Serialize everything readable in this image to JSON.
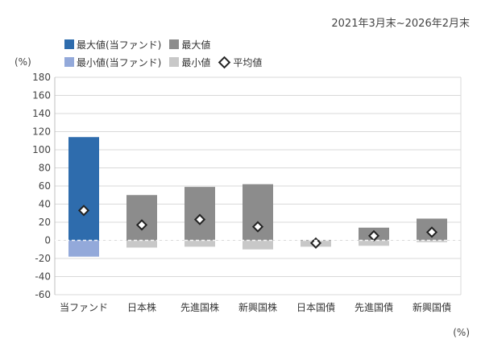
{
  "header": {
    "period": "2021年3月末~2026年2月末"
  },
  "legend": {
    "items": [
      {
        "label": "最大値(当ファンド)",
        "color": "#2e6cad",
        "marker": "square"
      },
      {
        "label": "最大値",
        "color": "#8c8c8c",
        "marker": "square"
      },
      {
        "label": "最小値(当ファンド)",
        "color": "#93a9da",
        "marker": "square"
      },
      {
        "label": "最小値",
        "color": "#c8c8c8",
        "marker": "square"
      },
      {
        "label": "平均値",
        "color": "#222222",
        "marker": "diamond-outline"
      }
    ]
  },
  "chart_data": {
    "type": "bar",
    "subtype": "floating range with average marker",
    "unit_left": "(%)",
    "unit_bottom_right": "(%)",
    "categories": [
      "当ファンド",
      "日本株",
      "先進国株",
      "新興国株",
      "日本国債",
      "先進国債",
      "新興国債"
    ],
    "series": [
      {
        "name": "最大値",
        "values": [
          114,
          50,
          59,
          62,
          0.5,
          14,
          24
        ]
      },
      {
        "name": "最小値",
        "values": [
          -18,
          -8,
          -7,
          -10,
          -7,
          -6,
          -2
        ]
      },
      {
        "name": "平均値",
        "values": [
          33,
          17,
          23,
          15,
          -3,
          5,
          9
        ]
      }
    ],
    "fund_index": 0,
    "colors": {
      "max_fund": "#2e6cad",
      "max": "#8c8c8c",
      "min_fund": "#93a9da",
      "min": "#c8c8c8",
      "avg_marker": "#222222"
    },
    "ylim": [
      -60,
      180
    ],
    "yticks": [
      180,
      160,
      140,
      120,
      100,
      80,
      60,
      40,
      20,
      0,
      -20,
      -40,
      -60
    ],
    "grid": true,
    "legend_position": "top"
  }
}
